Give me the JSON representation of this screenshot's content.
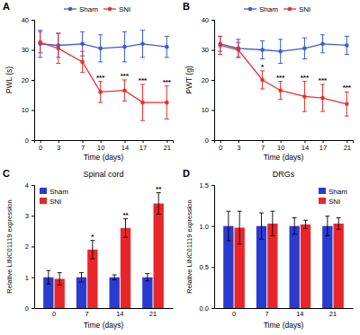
{
  "chart_data": [
    {
      "panel": "A",
      "type": "line",
      "xlabel": "Time (days)",
      "ylabel": "PWL (s)",
      "x": [
        0,
        3,
        7,
        10,
        14,
        17,
        21
      ],
      "xlim": [
        -1,
        22
      ],
      "xticks": [
        0,
        3,
        7,
        10,
        14,
        17,
        21
      ],
      "ylim": [
        0,
        40
      ],
      "yticks": [
        0,
        10,
        20,
        30,
        40
      ],
      "legend": "top",
      "marker": "circle",
      "series": [
        {
          "name": "Sham",
          "color": "#3a5bd9",
          "values": [
            32,
            31.5,
            32,
            30.5,
            31,
            32,
            31
          ],
          "errors": [
            4.5,
            4,
            4,
            4.5,
            5,
            4.5,
            3.5
          ]
        },
        {
          "name": "SNI",
          "color": "#e8302c",
          "values": [
            32.5,
            30.5,
            26,
            16,
            16.5,
            12.5,
            12.5
          ],
          "errors": [
            3.5,
            5,
            3.5,
            3.5,
            3.5,
            6,
            5.5
          ]
        }
      ],
      "annotations": [
        {
          "text": "***",
          "x": 10
        },
        {
          "text": "***",
          "x": 14
        },
        {
          "text": "***",
          "x": 17
        },
        {
          "text": "***",
          "x": 21
        }
      ]
    },
    {
      "panel": "B",
      "type": "line",
      "xlabel": "Time (days)",
      "ylabel": "PWT (g)",
      "x": [
        0,
        3,
        7,
        10,
        14,
        17,
        21
      ],
      "xlim": [
        -1,
        22
      ],
      "xticks": [
        0,
        3,
        7,
        10,
        14,
        17,
        21
      ],
      "ylim": [
        0,
        40
      ],
      "yticks": [
        0,
        10,
        20,
        30,
        40
      ],
      "legend": "top",
      "marker": "circle",
      "series": [
        {
          "name": "Sham",
          "color": "#3a5bd9",
          "values": [
            32,
            30.5,
            30,
            29.5,
            30.5,
            32,
            31.5
          ],
          "errors": [
            2.5,
            3,
            3,
            4,
            3.5,
            3,
            3
          ]
        },
        {
          "name": "SNI",
          "color": "#e8302c",
          "values": [
            31.5,
            30,
            20,
            16.5,
            14.5,
            14,
            12
          ],
          "errors": [
            3,
            2.5,
            3,
            3,
            5,
            4.5,
            4
          ]
        }
      ],
      "annotations": [
        {
          "text": "*",
          "x": 7
        },
        {
          "text": "***",
          "x": 10
        },
        {
          "text": "***",
          "x": 14
        },
        {
          "text": "***",
          "x": 17
        },
        {
          "text": "***",
          "x": 21
        }
      ]
    },
    {
      "panel": "C",
      "type": "bar",
      "title": "Spinal cord",
      "xlabel": "Time (days)",
      "ylabel": "Relative LINC01119 expression",
      "categories": [
        "0",
        "7",
        "14",
        "21"
      ],
      "ylim": [
        0,
        4
      ],
      "yticks": [
        0,
        1,
        2,
        3,
        4
      ],
      "legend": "upper left",
      "series": [
        {
          "name": "Sham",
          "color": "#2a3bd0",
          "values": [
            1,
            1,
            1,
            1
          ],
          "errors": [
            0.22,
            0.15,
            0.08,
            0.12
          ]
        },
        {
          "name": "SNI",
          "color": "#e8262a",
          "values": [
            0.95,
            1.9,
            2.6,
            3.4
          ],
          "errors": [
            0.2,
            0.3,
            0.3,
            0.35
          ]
        }
      ],
      "annotations": [
        {
          "text": "*",
          "x": "7"
        },
        {
          "text": "**",
          "x": "14"
        },
        {
          "text": "**",
          "x": "21"
        }
      ]
    },
    {
      "panel": "D",
      "type": "bar",
      "title": "DRGs",
      "xlabel": "Time (days)",
      "ylabel": "Relative LINC01119 expression",
      "categories": [
        "0",
        "7",
        "14",
        "21"
      ],
      "ylim": [
        0,
        1.5
      ],
      "yticks": [
        {
          "value": 0,
          "label": "0.0"
        },
        {
          "value": 0.5,
          "label": "0.5"
        },
        {
          "value": 1,
          "label": "1.0"
        },
        {
          "value": 1.5,
          "label": "1.5"
        }
      ],
      "legend": "upper right",
      "series": [
        {
          "name": "Sham",
          "color": "#2a3bd0",
          "values": [
            1,
            1,
            1,
            1
          ],
          "errors": [
            0.18,
            0.16,
            0.1,
            0.12
          ]
        },
        {
          "name": "SNI",
          "color": "#e8262a",
          "values": [
            0.98,
            1.03,
            1.02,
            1.03
          ],
          "errors": [
            0.2,
            0.15,
            0.05,
            0.07
          ]
        }
      ]
    }
  ]
}
